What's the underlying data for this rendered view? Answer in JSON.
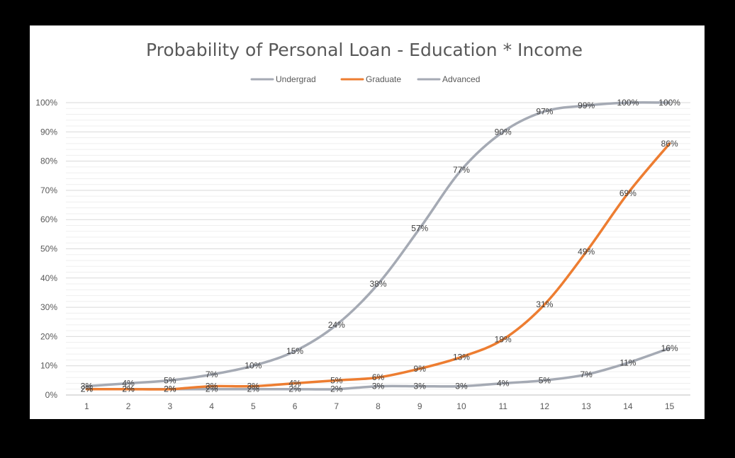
{
  "chart_data": {
    "type": "line",
    "title": "Probability of Personal Loan - Education * Income",
    "xlabel": "",
    "ylabel": "",
    "x": [
      1,
      2,
      3,
      4,
      5,
      6,
      7,
      8,
      9,
      10,
      11,
      12,
      13,
      14,
      15
    ],
    "ylim": [
      0,
      100
    ],
    "yticks": [
      0,
      10,
      20,
      30,
      40,
      50,
      60,
      70,
      80,
      90,
      100
    ],
    "ytick_labels": [
      "0%",
      "10%",
      "20%",
      "30%",
      "40%",
      "50%",
      "60%",
      "70%",
      "80%",
      "90%",
      "100%"
    ],
    "grid": true,
    "legend_position": "top",
    "series": [
      {
        "name": "Undergrad",
        "color": "#a5aab4",
        "values": [
          2,
          2,
          2,
          2,
          2,
          2,
          2,
          3,
          3,
          3,
          4,
          5,
          7,
          11,
          16
        ],
        "labels": [
          "2%",
          "2%",
          "2%",
          "2%",
          "2%",
          "2%",
          "2%",
          "3%",
          "3%",
          "3%",
          "4%",
          "5%",
          "7%",
          "11%",
          "16%"
        ]
      },
      {
        "name": "Graduate",
        "color": "#ed7d31",
        "values": [
          2,
          2,
          2,
          3,
          3,
          4,
          5,
          6,
          9,
          13,
          19,
          31,
          49,
          69,
          86
        ],
        "labels": [
          "2%",
          "2%",
          "2%",
          "3%",
          "3%",
          "4%",
          "5%",
          "6%",
          "9%",
          "13%",
          "19%",
          "31%",
          "49%",
          "69%",
          "86%"
        ]
      },
      {
        "name": "Advanced",
        "color": "#a5aab4",
        "values": [
          3,
          4,
          5,
          7,
          10,
          15,
          24,
          38,
          57,
          77,
          90,
          97,
          99,
          100,
          100
        ],
        "labels": [
          "3%",
          "4%",
          "5%",
          "7%",
          "10%",
          "15%",
          "24%",
          "38%",
          "57%",
          "77%",
          "90%",
          "97%",
          "99%",
          "100%",
          "100%"
        ]
      }
    ]
  }
}
